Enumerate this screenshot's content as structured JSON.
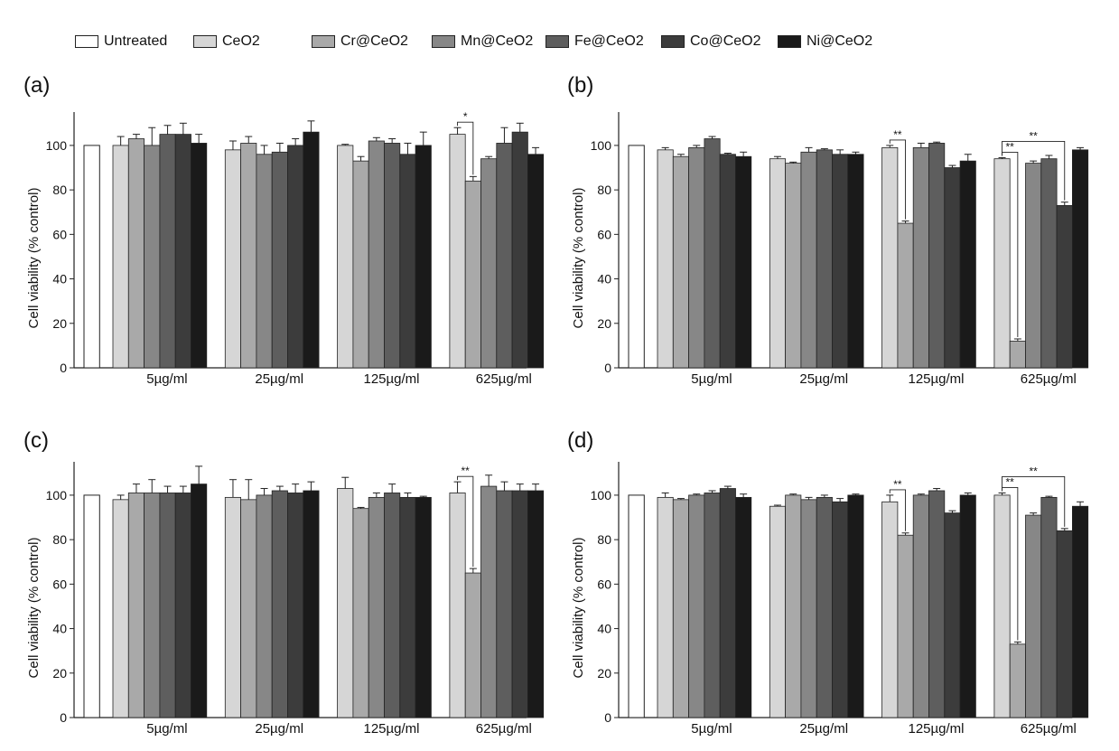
{
  "legend": [
    {
      "name": "Untreated",
      "color": "#ffffff"
    },
    {
      "name": "CeO2",
      "color": "#d6d6d6"
    },
    {
      "name": "Cr@CeO2",
      "color": "#a9a9a9"
    },
    {
      "name": "Mn@CeO2",
      "color": "#878787"
    },
    {
      "name": "Fe@CeO2",
      "color": "#5e5e5e"
    },
    {
      "name": "Co@CeO2",
      "color": "#3c3c3c"
    },
    {
      "name": "Ni@CeO2",
      "color": "#1a1a1a"
    }
  ],
  "chart_data": [
    {
      "panel": "(a)",
      "type": "bar",
      "ylabel": "Cell viability (% control)",
      "ylim": [
        0,
        115
      ],
      "yticks": [
        "0",
        "20",
        "40",
        "60",
        "80",
        "100"
      ],
      "untreated": 100,
      "categories": [
        "5µg/ml",
        "25µg/ml",
        "125µg/ml",
        "625µg/ml"
      ],
      "series": [
        {
          "name": "CeO2",
          "values": [
            100,
            98,
            100,
            105
          ],
          "errors": [
            4,
            4,
            0.5,
            3
          ]
        },
        {
          "name": "Cr@CeO2",
          "values": [
            103,
            101,
            93,
            84
          ],
          "errors": [
            2,
            3,
            2,
            2
          ]
        },
        {
          "name": "Mn@CeO2",
          "values": [
            100,
            96,
            102,
            94
          ],
          "errors": [
            8,
            4,
            1.5,
            1
          ]
        },
        {
          "name": "Fe@CeO2",
          "values": [
            105,
            97,
            101,
            101
          ],
          "errors": [
            4,
            4,
            2,
            7
          ]
        },
        {
          "name": "Co@CeO2",
          "values": [
            105,
            100,
            96,
            106
          ],
          "errors": [
            5,
            3,
            5,
            4
          ]
        },
        {
          "name": "Ni@CeO2",
          "values": [
            101,
            106,
            100,
            96
          ],
          "errors": [
            4,
            5,
            6,
            3
          ]
        }
      ],
      "significance": [
        {
          "category": 3,
          "from": "CeO2",
          "to": "Cr@CeO2",
          "label": "*"
        }
      ]
    },
    {
      "panel": "(b)",
      "type": "bar",
      "ylabel": "Cell viability (% control)",
      "ylim": [
        0,
        115
      ],
      "yticks": [
        "0",
        "20",
        "40",
        "60",
        "80",
        "100"
      ],
      "untreated": 100,
      "categories": [
        "5µg/ml",
        "25µg/ml",
        "125µg/ml",
        "625µg/ml"
      ],
      "series": [
        {
          "name": "CeO2",
          "values": [
            98,
            94,
            99,
            94
          ],
          "errors": [
            1,
            1,
            1,
            0.5
          ]
        },
        {
          "name": "Cr@CeO2",
          "values": [
            95,
            92,
            65,
            12
          ],
          "errors": [
            1,
            0.5,
            1,
            1
          ]
        },
        {
          "name": "Mn@CeO2",
          "values": [
            99,
            97,
            99,
            92
          ],
          "errors": [
            1,
            2,
            2,
            1
          ]
        },
        {
          "name": "Fe@CeO2",
          "values": [
            103,
            98,
            101,
            94
          ],
          "errors": [
            1,
            0.5,
            0.5,
            1.5
          ]
        },
        {
          "name": "Co@CeO2",
          "values": [
            96,
            96,
            90,
            73
          ],
          "errors": [
            0.5,
            2,
            1,
            1.5
          ]
        },
        {
          "name": "Ni@CeO2",
          "values": [
            95,
            96,
            93,
            98
          ],
          "errors": [
            2,
            1,
            3,
            1
          ]
        }
      ],
      "significance": [
        {
          "category": 2,
          "from": "CeO2",
          "to": "Cr@CeO2",
          "label": "**"
        },
        {
          "category": 3,
          "from": "CeO2",
          "to": "Cr@CeO2",
          "label": "**"
        },
        {
          "category": 3,
          "from": "CeO2",
          "to": "Co@CeO2",
          "label": "**"
        }
      ]
    },
    {
      "panel": "(c)",
      "type": "bar",
      "ylabel": "Cell viability (% control)",
      "ylim": [
        0,
        115
      ],
      "yticks": [
        "0",
        "20",
        "40",
        "60",
        "80",
        "100"
      ],
      "untreated": 100,
      "categories": [
        "5µg/ml",
        "25µg/ml",
        "125µg/ml",
        "625µg/ml"
      ],
      "series": [
        {
          "name": "CeO2",
          "values": [
            98,
            99,
            103,
            101
          ],
          "errors": [
            2,
            8,
            5,
            5
          ]
        },
        {
          "name": "Cr@CeO2",
          "values": [
            101,
            98,
            94,
            65
          ],
          "errors": [
            4,
            9,
            0.5,
            2
          ]
        },
        {
          "name": "Mn@CeO2",
          "values": [
            101,
            100,
            99,
            104
          ],
          "errors": [
            6,
            3,
            2,
            5
          ]
        },
        {
          "name": "Fe@CeO2",
          "values": [
            101,
            102,
            101,
            102
          ],
          "errors": [
            3,
            2,
            4,
            4
          ]
        },
        {
          "name": "Co@CeO2",
          "values": [
            101,
            101,
            99,
            102
          ],
          "errors": [
            3,
            4,
            2,
            3
          ]
        },
        {
          "name": "Ni@CeO2",
          "values": [
            105,
            102,
            99,
            102
          ],
          "errors": [
            8,
            4,
            0.5,
            3
          ]
        }
      ],
      "significance": [
        {
          "category": 3,
          "from": "CeO2",
          "to": "Cr@CeO2",
          "label": "**"
        }
      ]
    },
    {
      "panel": "(d)",
      "type": "bar",
      "ylabel": "Cell viability (% control)",
      "ylim": [
        0,
        115
      ],
      "yticks": [
        "0",
        "20",
        "40",
        "60",
        "80",
        "100"
      ],
      "untreated": 100,
      "categories": [
        "5µg/ml",
        "25µg/ml",
        "125µg/ml",
        "625µg/ml"
      ],
      "series": [
        {
          "name": "CeO2",
          "values": [
            99,
            95,
            97,
            100
          ],
          "errors": [
            2,
            0.5,
            3,
            1
          ]
        },
        {
          "name": "Cr@CeO2",
          "values": [
            98,
            100,
            82,
            33
          ],
          "errors": [
            0.5,
            0.5,
            1,
            1
          ]
        },
        {
          "name": "Mn@CeO2",
          "values": [
            100,
            98,
            100,
            91
          ],
          "errors": [
            0.5,
            1,
            0.5,
            1
          ]
        },
        {
          "name": "Fe@CeO2",
          "values": [
            101,
            99,
            102,
            99
          ],
          "errors": [
            1,
            1,
            1,
            0.5
          ]
        },
        {
          "name": "Co@CeO2",
          "values": [
            103,
            97,
            92,
            84
          ],
          "errors": [
            1,
            1.5,
            1,
            1
          ]
        },
        {
          "name": "Ni@CeO2",
          "values": [
            99,
            100,
            100,
            95
          ],
          "errors": [
            1.5,
            0.5,
            1,
            2
          ]
        }
      ],
      "significance": [
        {
          "category": 2,
          "from": "CeO2",
          "to": "Cr@CeO2",
          "label": "**"
        },
        {
          "category": 3,
          "from": "CeO2",
          "to": "Cr@CeO2",
          "label": "**"
        },
        {
          "category": 3,
          "from": "CeO2",
          "to": "Co@CeO2",
          "label": "**"
        }
      ]
    }
  ]
}
